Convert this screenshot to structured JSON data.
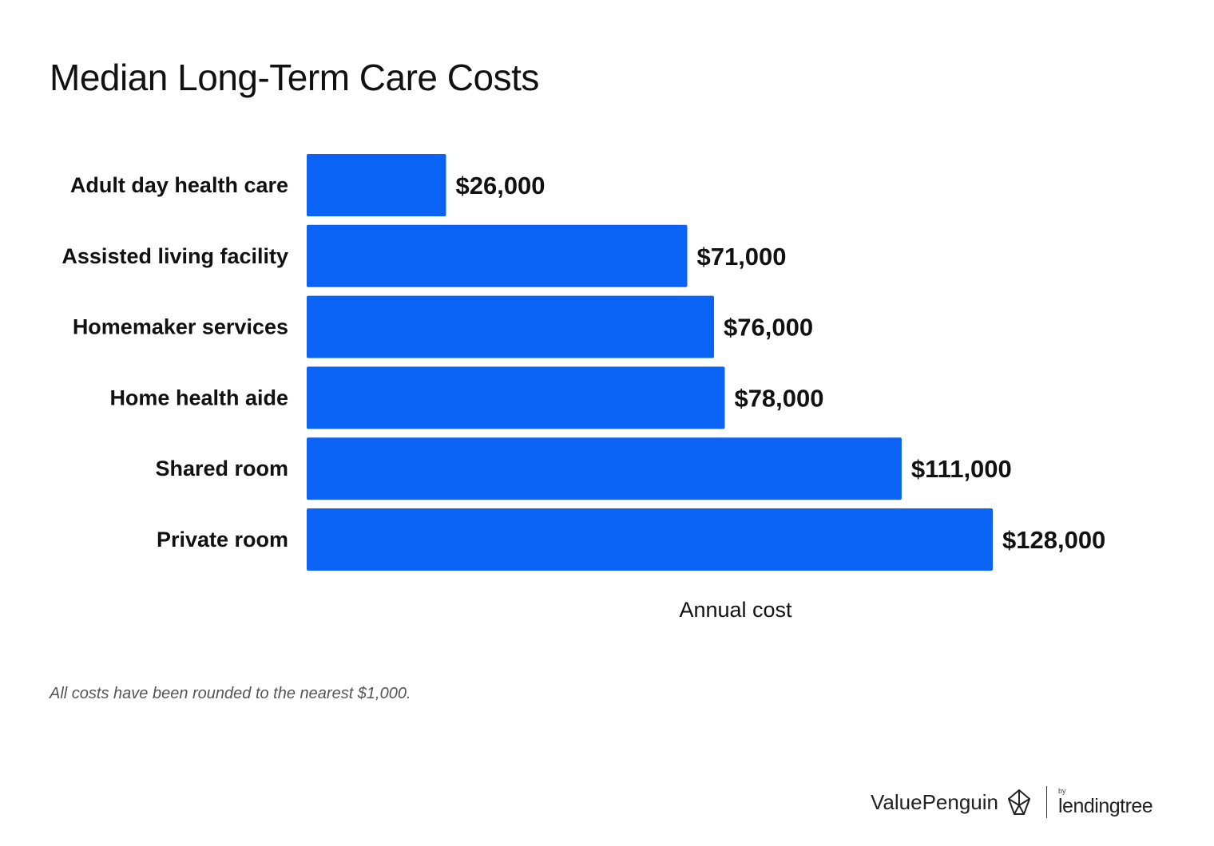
{
  "title": "Median Long-Term Care Costs",
  "chart_data": {
    "type": "bar",
    "orientation": "horizontal",
    "categories": [
      "Adult day health care",
      "Assisted living facility",
      "Homemaker services",
      "Home health aide",
      "Shared room",
      "Private room"
    ],
    "values": [
      26000,
      71000,
      76000,
      78000,
      111000,
      128000
    ],
    "data_labels": [
      "$26,000",
      "$71,000",
      "$76,000",
      "$78,000",
      "$111,000",
      "$128,000"
    ],
    "xlabel": "Annual cost",
    "ylabel": "",
    "xlim": [
      0,
      128000
    ],
    "bar_color": "#0a63f5",
    "grid": false
  },
  "footnote": "All costs have been rounded to the nearest $1,000.",
  "branding": {
    "valuepenguin": "ValuePenguin",
    "by": "by",
    "lendingtree": "lendingtree",
    "icons": [
      "penguin-logo-icon"
    ]
  }
}
